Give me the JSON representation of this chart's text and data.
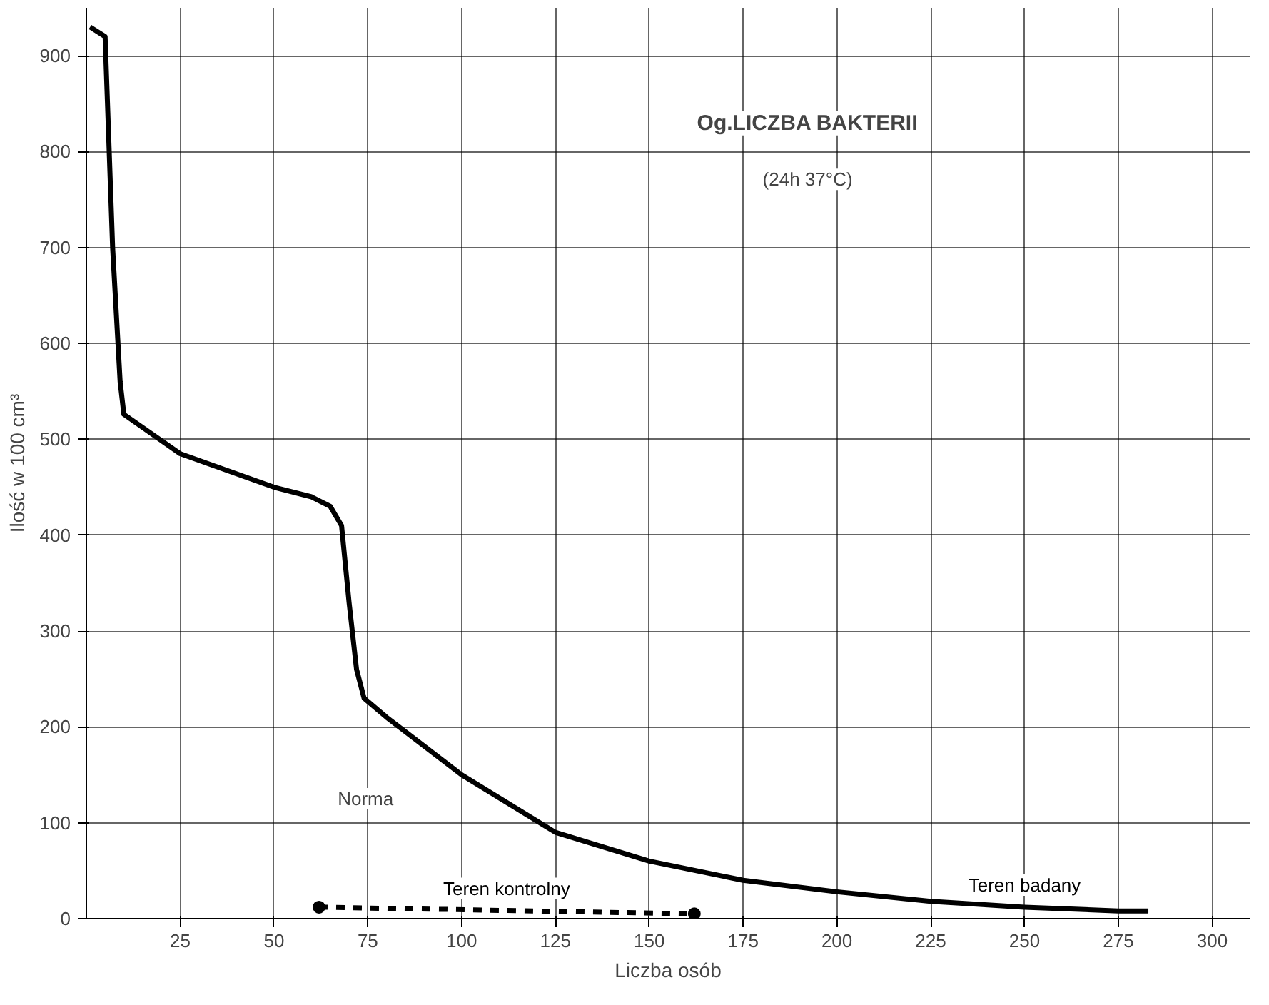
{
  "chart_data": {
    "type": "line",
    "title": "Og.LICZBA BAKTERII",
    "subtitle": "(24h 37°C)",
    "xlabel": "Liczba osób",
    "ylabel": "Ilość w 100 cm³",
    "xlim": [
      0,
      310
    ],
    "ylim": [
      0,
      950
    ],
    "xticks": [
      25,
      50,
      75,
      100,
      125,
      150,
      175,
      200,
      225,
      250,
      275,
      300
    ],
    "yticks": [
      0,
      100,
      200,
      300,
      400,
      500,
      600,
      700,
      800,
      900
    ],
    "grid": true,
    "series": [
      {
        "name": "Teren badany",
        "color": "#000000",
        "line_style": "solid",
        "marker": "none",
        "x": [
          1,
          5,
          7,
          9,
          10,
          25,
          50,
          60,
          65,
          68,
          70,
          72,
          74,
          80,
          100,
          125,
          150,
          175,
          200,
          225,
          250,
          275,
          283
        ],
        "values": [
          930,
          920,
          700,
          560,
          526,
          485,
          450,
          440,
          430,
          410,
          330,
          260,
          230,
          210,
          150,
          90,
          60,
          40,
          28,
          18,
          12,
          8,
          8
        ]
      },
      {
        "name": "Teren kontrolny",
        "color": "#000000",
        "line_style": "dashed",
        "marker": "circle",
        "x": [
          62,
          162
        ],
        "values": [
          12,
          5
        ]
      }
    ],
    "annotations": [
      "Norma"
    ]
  }
}
